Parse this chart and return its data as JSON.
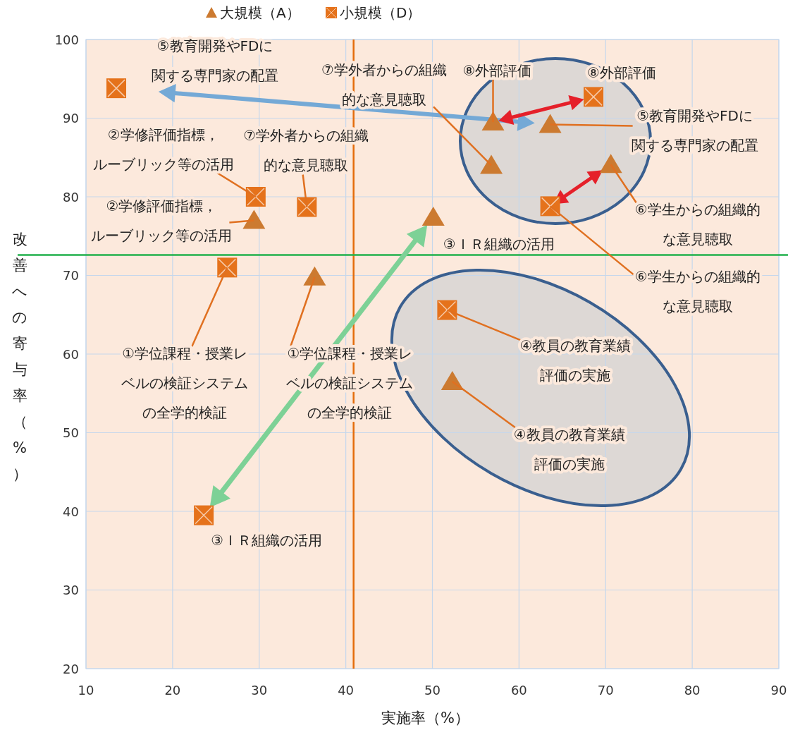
{
  "chart_data": {
    "type": "scatter",
    "xlabel": "実施率（%）",
    "ylabel": "改善への寄与率（%）",
    "xlim": [
      10,
      90
    ],
    "ylim": [
      20,
      100
    ],
    "xticks": [
      10,
      20,
      30,
      40,
      50,
      60,
      70,
      80,
      90
    ],
    "yticks": [
      20,
      30,
      40,
      50,
      60,
      70,
      80,
      90,
      100
    ],
    "grid": true,
    "legend": "top",
    "series": [
      {
        "name": "大規模（A）",
        "color": "#cc7a30",
        "marker": "triangle",
        "x": [
          36.4,
          29.4,
          50.1,
          52.3,
          63.6,
          70.6,
          56.8,
          57.0
        ],
        "values": [
          69.8,
          77.0,
          77.4,
          56.5,
          89.2,
          84.1,
          84.0,
          89.5
        ]
      },
      {
        "name": "小規模（D）",
        "color": "#e5721b",
        "marker": "square",
        "x": [
          26.3,
          29.6,
          23.6,
          51.7,
          13.5,
          63.6,
          35.5,
          68.6
        ],
        "values": [
          71.0,
          80.0,
          39.5,
          65.6,
          93.8,
          78.8,
          78.7,
          92.7
        ]
      }
    ],
    "ref_lines": [
      {
        "axis": "x",
        "value": 40.9,
        "color": "#e46c0a"
      },
      {
        "axis": "y",
        "value": 72.6,
        "color": "#22b04c"
      }
    ],
    "annotations": [
      {
        "text": "⑤教育開発やFDに関する専門家の配置",
        "x": 13.5,
        "y": 93.8
      },
      {
        "text": "②学修評価指標，ルーブリック等の活用",
        "x": 29.4,
        "y": 77.0
      },
      {
        "text": "②学修評価指標，ルーブリック等の活用",
        "x": 29.6,
        "y": 80.0
      },
      {
        "text": "⑦学外者からの組織的な意見聴取",
        "x": 35.5,
        "y": 78.7
      },
      {
        "text": "⑦学外者からの組織的な意見聴取",
        "x": 56.8,
        "y": 84.0
      },
      {
        "text": "⑧外部評価",
        "x": 57.0,
        "y": 89.5
      },
      {
        "text": "⑧外部評価",
        "x": 68.6,
        "y": 92.7
      },
      {
        "text": "⑤教育開発やFDに関する専門家の配置",
        "x": 63.6,
        "y": 89.2
      },
      {
        "text": "⑥学生からの組織的な意見聴取",
        "x": 70.6,
        "y": 84.1
      },
      {
        "text": "⑥学生からの組織的な意見聴取",
        "x": 63.6,
        "y": 78.8
      },
      {
        "text": "①学位課程・授業レベルの検証システムの全学的検証",
        "x": 26.3,
        "y": 71.0
      },
      {
        "text": "①学位課程・授業レベルの検証システムの全学的検証",
        "x": 36.4,
        "y": 69.8
      },
      {
        "text": "③ＩＲ組織の活用",
        "x": 50.1,
        "y": 77.4
      },
      {
        "text": "③ＩＲ組織の活用",
        "x": 23.6,
        "y": 39.5
      },
      {
        "text": "④教員の教育業績評価の実施",
        "x": 51.7,
        "y": 65.6
      },
      {
        "text": "④教員の教育業績評価の実施",
        "x": 52.3,
        "y": 56.5
      }
    ]
  }
}
